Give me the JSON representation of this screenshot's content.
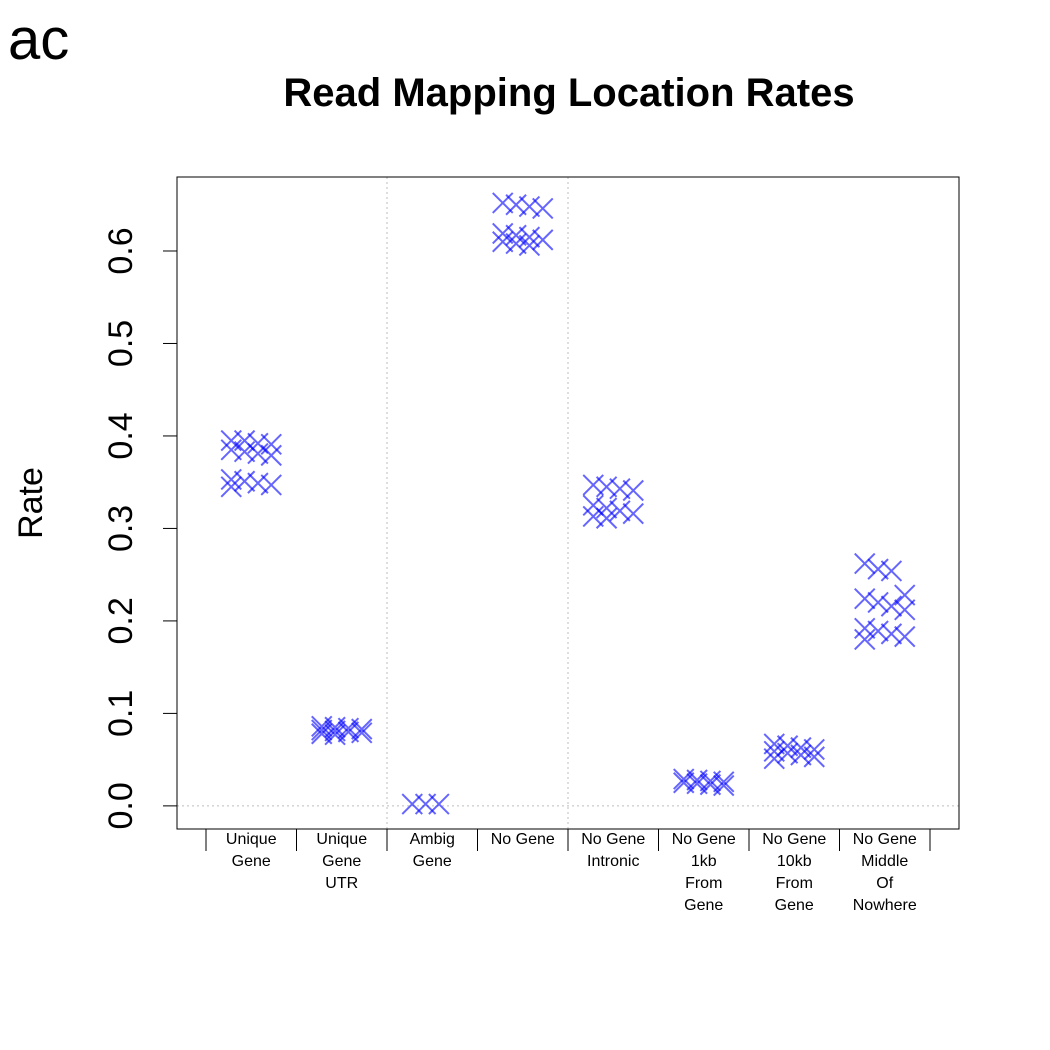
{
  "panel_label": "ac",
  "colors": {
    "marker": "#0000ff",
    "axis": "#000000",
    "grid": "#bebebe"
  },
  "chart_data": {
    "type": "scatter",
    "title": "Read Mapping Location Rates",
    "xlabel": "",
    "ylabel": "Rate",
    "ylim": [
      -0.025,
      0.68
    ],
    "yticks": [
      0.0,
      0.1,
      0.2,
      0.3,
      0.4,
      0.5,
      0.6
    ],
    "ytick_labels": [
      "0.0",
      "0.1",
      "0.2",
      "0.3",
      "0.4",
      "0.5",
      "0.6"
    ],
    "grid": "dotted separators after categories 1 and 3, horizontal dotted line at 0",
    "marker": "x",
    "categories": [
      {
        "lines": [
          "Unique",
          "Gene"
        ],
        "values": [
          0.395,
          0.395,
          0.392,
          0.391,
          0.385,
          0.383,
          0.381,
          0.379,
          0.353,
          0.351,
          0.349,
          0.347,
          0.345
        ]
      },
      {
        "lines": [
          "Unique",
          "Gene",
          "UTR"
        ],
        "values": [
          0.086,
          0.085,
          0.084,
          0.083,
          0.082,
          0.081,
          0.08,
          0.079,
          0.078,
          0.077
        ]
      },
      {
        "lines": [
          "Ambig",
          "Gene"
        ],
        "values": [
          0.002,
          0.002,
          0.002
        ]
      },
      {
        "lines": [
          "No Gene"
        ],
        "values": [
          0.652,
          0.65,
          0.648,
          0.646,
          0.619,
          0.617,
          0.615,
          0.612,
          0.61,
          0.608,
          0.606
        ]
      },
      {
        "lines": [
          "No Gene",
          "Intronic"
        ],
        "values": [
          0.347,
          0.345,
          0.343,
          0.341,
          0.325,
          0.322,
          0.319,
          0.316,
          0.313,
          0.311
        ]
      },
      {
        "lines": [
          "No Gene",
          "1kb",
          "From",
          "Gene"
        ],
        "values": [
          0.029,
          0.028,
          0.027,
          0.026,
          0.025,
          0.024,
          0.023,
          0.022
        ]
      },
      {
        "lines": [
          "No Gene",
          "10kb",
          "From",
          "Gene"
        ],
        "values": [
          0.067,
          0.065,
          0.063,
          0.061,
          0.059,
          0.057,
          0.055,
          0.053,
          0.051
        ]
      },
      {
        "lines": [
          "No Gene",
          "Middle",
          "Of",
          "Nowhere"
        ],
        "values": [
          0.262,
          0.256,
          0.254,
          0.228,
          0.224,
          0.22,
          0.216,
          0.212,
          0.192,
          0.189,
          0.186,
          0.183,
          0.18
        ]
      }
    ]
  }
}
